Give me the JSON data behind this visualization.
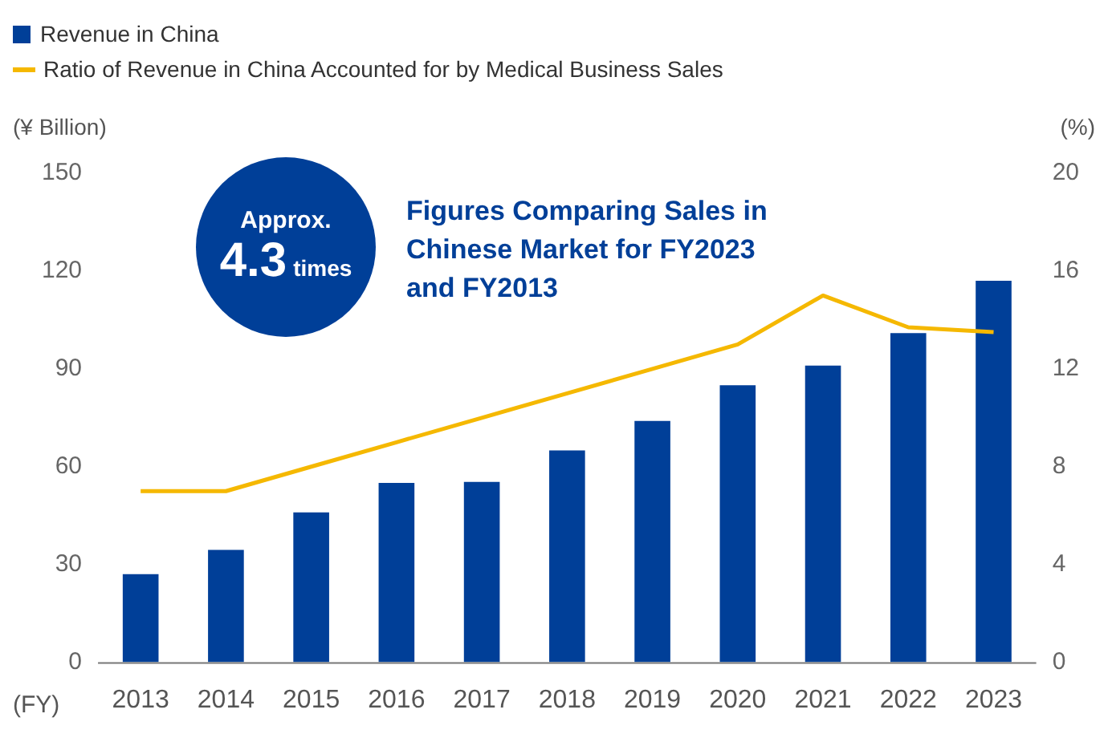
{
  "chart_data": {
    "type": "bar",
    "categories": [
      "2013",
      "2014",
      "2015",
      "2016",
      "2017",
      "2018",
      "2019",
      "2020",
      "2021",
      "2022",
      "2023"
    ],
    "series": [
      {
        "name": "Revenue in China",
        "color": "#003f98",
        "values": [
          27,
          34.5,
          46,
          55,
          55.3,
          65,
          74,
          85,
          91,
          101,
          117
        ]
      },
      {
        "name": "Ratio of Revenue in China Accounted for by Medical Business Sales",
        "type": "line",
        "axis": "y2",
        "color": "#f5b800",
        "marker": "none",
        "values": [
          7,
          7,
          8,
          9,
          10,
          11,
          12,
          13,
          15,
          13.7,
          13.5
        ]
      }
    ],
    "xlabel": "(FY)",
    "ylabel": "(¥ Billion)",
    "y2label": "(%)",
    "ylim": [
      0,
      150
    ],
    "yticks": [
      0,
      30,
      60,
      90,
      120,
      150
    ],
    "y2lim": [
      0,
      20
    ],
    "y2ticks": [
      0,
      4,
      8,
      12,
      16,
      20
    ],
    "grid": false,
    "legend": "top left",
    "annotations": [
      "Approx.",
      "4.3",
      "times",
      "Figures Comparing Sales in Chinese Market for FY2023 and FY2013"
    ]
  }
}
